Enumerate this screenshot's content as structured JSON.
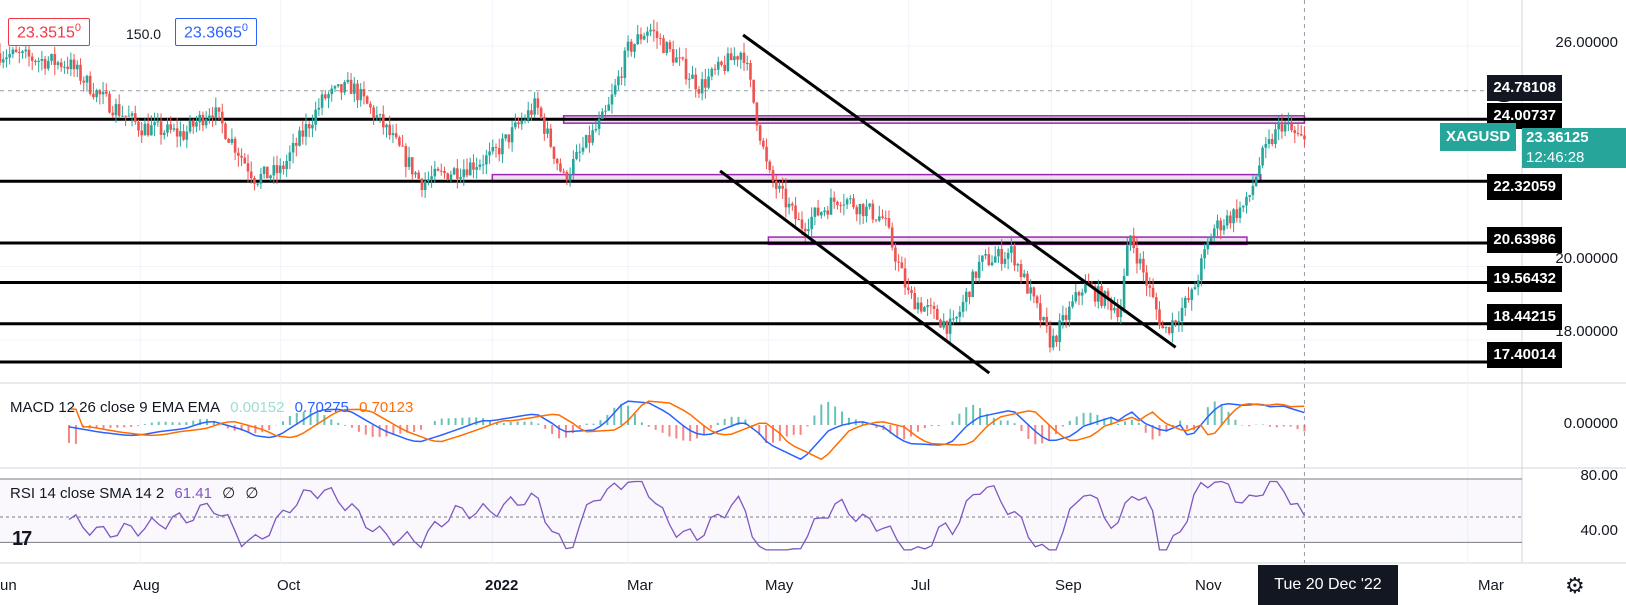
{
  "header": {
    "bid": "23.3515",
    "bid_sup": "0",
    "spread": "150.0",
    "ask": "23.3665",
    "ask_sup": "0"
  },
  "symbol": {
    "name": "XAGUSD",
    "price": "23.36125",
    "countdown": "12:46:28"
  },
  "crosshair_label": "24.78108",
  "price_axis": [
    "26.00000",
    "20.00000",
    "18.00000"
  ],
  "level_labels": [
    "24.00737",
    "22.32059",
    "20.63986",
    "19.56432",
    "18.44215",
    "17.40014"
  ],
  "time_axis": [
    "un",
    "Aug",
    "Oct",
    "2022",
    "Mar",
    "May",
    "Jul",
    "Sep",
    "Nov",
    "Mar"
  ],
  "time_cursor": "Tue 20 Dec '22",
  "macd": {
    "label": "MACD 12 26 close 9 EMA EMA",
    "hist": "0.00152",
    "macd": "0.70275",
    "signal": "0.70123",
    "axis": "0.00000",
    "colors": {
      "macd": "#2962ff",
      "signal": "#ff6d00",
      "hist_up": "#26a69a",
      "hist_down": "#ef5350"
    }
  },
  "rsi": {
    "label": "RSI 14 close SMA 14 2",
    "value": "61.41",
    "extra1": "∅",
    "extra2": "∅",
    "axis": [
      "80.00",
      "40.00"
    ],
    "color": "#7e57c2"
  },
  "logo": "17",
  "chart_data": {
    "type": "candlestick",
    "title": "",
    "x": [
      "2021-06",
      "2021-08",
      "2021-10",
      "2022-01",
      "2022-03",
      "2022-05",
      "2022-07",
      "2022-09",
      "2022-11",
      "2022-12-20"
    ],
    "close_series": [
      [
        "2021-06",
        25.8
      ],
      [
        "2021-07",
        25.5
      ],
      [
        "2021-07-15",
        24.6
      ],
      [
        "2021-08",
        23.8
      ],
      [
        "2021-08-20",
        23.6
      ],
      [
        "2021-09",
        24.3
      ],
      [
        "2021-09-20",
        22.4
      ],
      [
        "2021-10",
        22.6
      ],
      [
        "2021-10-20",
        24.6
      ],
      [
        "2021-11",
        24.9
      ],
      [
        "2021-11-15",
        23.8
      ],
      [
        "2021-12",
        22.3
      ],
      [
        "2021-12-20",
        22.7
      ],
      [
        "2022-01",
        23.0
      ],
      [
        "2022-01-20",
        24.4
      ],
      [
        "2022-02",
        22.4
      ],
      [
        "2022-02-20",
        24.2
      ],
      [
        "2022-03",
        25.9
      ],
      [
        "2022-03-10",
        26.5
      ],
      [
        "2022-04",
        24.9
      ],
      [
        "2022-04-20",
        25.9
      ],
      [
        "2022-05",
        22.5
      ],
      [
        "2022-05-15",
        21.1
      ],
      [
        "2022-06",
        21.9
      ],
      [
        "2022-06-20",
        21.3
      ],
      [
        "2022-07",
        19.2
      ],
      [
        "2022-07-20",
        18.3
      ],
      [
        "2022-08",
        20.1
      ],
      [
        "2022-08-15",
        20.4
      ],
      [
        "2022-09",
        17.9
      ],
      [
        "2022-09-15",
        19.5
      ],
      [
        "2022-10",
        18.8
      ],
      [
        "2022-10-05",
        20.9
      ],
      [
        "2022-10-20",
        18.2
      ],
      [
        "2022-11",
        19.2
      ],
      [
        "2022-11-10",
        21.0
      ],
      [
        "2022-11-25",
        21.7
      ],
      [
        "2022-12",
        22.9
      ],
      [
        "2022-12-10",
        23.9
      ],
      [
        "2022-12-20",
        23.36
      ]
    ],
    "horizontal_levels": [
      24.00737,
      22.32059,
      20.63986,
      19.56432,
      18.44215,
      17.40014
    ],
    "zones": [
      {
        "from": "2022-02",
        "to": "2022-12-20",
        "low": 23.9,
        "high": 24.1
      },
      {
        "from": "2022-01",
        "to": "2022-12",
        "low": 22.3,
        "high": 22.5
      },
      {
        "from": "2022-05",
        "to": "2022-11-25",
        "low": 20.6,
        "high": 20.8
      }
    ],
    "trendlines": [
      {
        "from": [
          "2022-04-20",
          26.3
        ],
        "to": [
          "2022-10-25",
          17.8
        ]
      },
      {
        "from": [
          "2022-04-10",
          22.6
        ],
        "to": [
          "2022-08-05",
          17.1
        ]
      }
    ],
    "ylim": [
      16.8,
      26.8
    ]
  }
}
